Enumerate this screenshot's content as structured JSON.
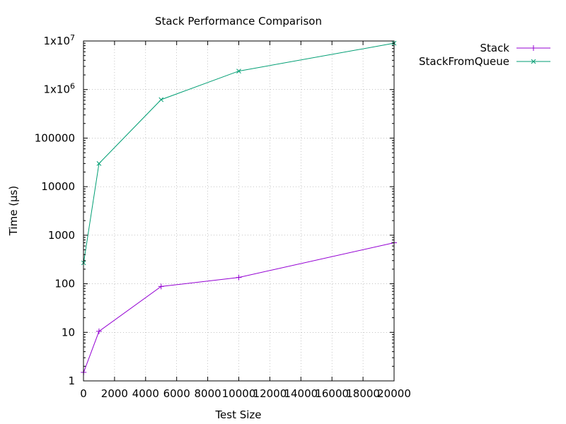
{
  "chart_data": {
    "type": "line",
    "title": "Stack Performance Comparison",
    "xlabel": "Test Size",
    "ylabel": "Time (µs)",
    "xlim": [
      0,
      20000
    ],
    "ylim": [
      1,
      10000000
    ],
    "yscale": "log",
    "grid": true,
    "legend": "outside-top-right",
    "xticks": [
      0,
      2000,
      4000,
      6000,
      8000,
      10000,
      12000,
      14000,
      16000,
      18000,
      20000
    ],
    "xtick_labels": [
      "0",
      "2000",
      "4000",
      "6000",
      "8000",
      "10000",
      "12000",
      "14000",
      "16000",
      "18000",
      "20000"
    ],
    "yticks": [
      1,
      10,
      100,
      1000,
      10000,
      100000,
      1000000,
      10000000
    ],
    "ytick_labels": [
      "1",
      "10",
      "100",
      "1000",
      "10000",
      "100000",
      "1x10",
      "1x10"
    ],
    "ytick_exponents": [
      "",
      "",
      "",
      "",
      "",
      "",
      "6",
      "7"
    ],
    "series": [
      {
        "name": "Stack",
        "color": "#9400d3",
        "marker": "plus",
        "x": [
          10,
          1000,
          5000,
          10000,
          20000
        ],
        "y": [
          1.5,
          10.5,
          88,
          135,
          700
        ]
      },
      {
        "name": "StackFromQueue",
        "color": "#009e73",
        "marker": "cross",
        "x": [
          10,
          1000,
          5000,
          10000,
          20000
        ],
        "y": [
          270,
          30000,
          620000,
          2400000,
          9000000
        ]
      }
    ]
  }
}
